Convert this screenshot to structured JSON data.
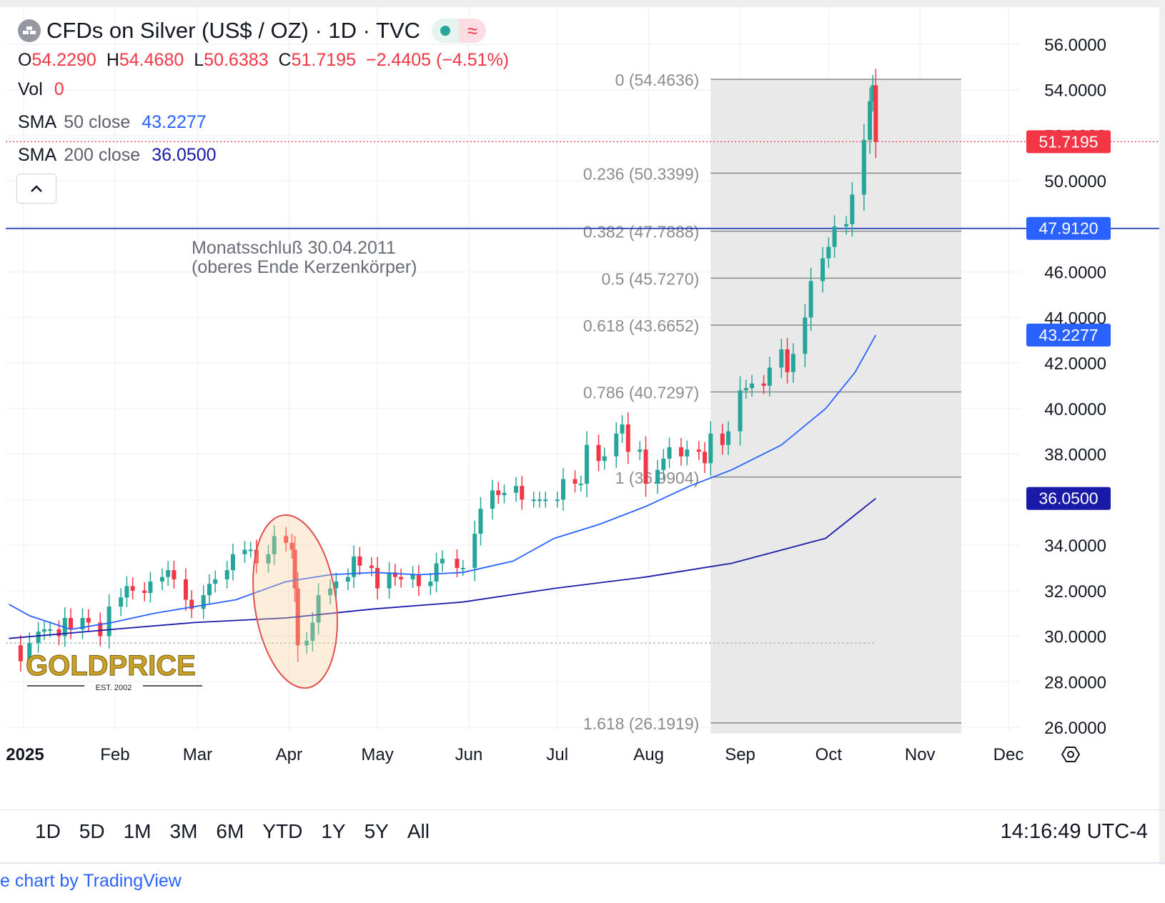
{
  "header": {
    "title": "CFDs on Silver (US$ / OZ) · 1D · TVC",
    "status_wave": "≈",
    "ohlc": {
      "o_label": "O",
      "o": "54.2290",
      "h_label": "H",
      "h": "54.4680",
      "l_label": "L",
      "l": "50.6383",
      "c_label": "C",
      "c": "51.7195",
      "change": "−2.4405 (−4.51%)"
    },
    "vol": {
      "label": "Vol",
      "value": "0"
    },
    "sma50": {
      "name": "SMA",
      "param": "50 close",
      "value": "43.2277"
    },
    "sma200": {
      "name": "SMA",
      "param": "200 close",
      "value": "36.0500"
    }
  },
  "colors": {
    "up": "#26a69a",
    "down": "#f23645",
    "sma50": "#2962ff",
    "sma200": "#1a1aa8",
    "hline": "#1e3fb8",
    "fib_zone": "#e9e9e9",
    "fib_line": "#8a8a8a"
  },
  "annotation": {
    "line1": "Monatsschluß 30.04.2011",
    "line2": "(oberes Ende Kerzenkörper)"
  },
  "logo": {
    "text": "GOLDPRICE",
    "sub": "EST. 2002"
  },
  "range_buttons": [
    "1D",
    "5D",
    "1M",
    "3M",
    "6M",
    "YTD",
    "1Y",
    "5Y",
    "All"
  ],
  "clock": "14:16:49 UTC-4",
  "credit": "e chart by TradingView",
  "chart_data": {
    "type": "candlestick",
    "title": "CFDs on Silver (US$ / OZ) · 1D · TVC",
    "y_axis": {
      "ylim": [
        25.5,
        57.5
      ],
      "ticks": [
        "56.0000",
        "54.0000",
        "52.0000",
        "50.0000",
        "48.0000",
        "46.0000",
        "44.0000",
        "42.0000",
        "40.0000",
        "38.0000",
        "36.0000",
        "34.0000",
        "32.0000",
        "30.0000",
        "28.0000",
        "26.0000"
      ]
    },
    "x_axis": {
      "ticks": [
        "2025",
        "Feb",
        "Mar",
        "Apr",
        "May",
        "Jun",
        "Jul",
        "Aug",
        "Sep",
        "Oct",
        "Nov",
        "Dec"
      ]
    },
    "price_tags": [
      {
        "value": "51.7195",
        "color": "#f23645"
      },
      {
        "value": "47.9120",
        "color": "#2962ff"
      },
      {
        "value": "43.2277",
        "color": "#2962ff"
      },
      {
        "value": "36.0500",
        "color": "#1a1aa8"
      }
    ],
    "horizontal_line": {
      "value": 47.912
    },
    "current_price": 51.7195,
    "prev_close_ref": 29.7,
    "fibonacci": [
      {
        "level": "0",
        "price": 54.4636,
        "label": "0 (54.4636)"
      },
      {
        "level": "0.236",
        "price": 50.3399,
        "label": "0.236 (50.3399)"
      },
      {
        "level": "0.382",
        "price": 47.7888,
        "label": "0.382 (47.7888)"
      },
      {
        "level": "0.5",
        "price": 45.727,
        "label": "0.5 (45.7270)"
      },
      {
        "level": "0.618",
        "price": 43.6652,
        "label": "0.618 (43.6652)"
      },
      {
        "level": "0.786",
        "price": 40.7297,
        "label": "0.786 (40.7297)"
      },
      {
        "level": "1",
        "price": 36.9904,
        "label": "1 (36.9904)"
      },
      {
        "level": "1.618",
        "price": 26.1919,
        "label": "1.618 (26.1919)"
      }
    ],
    "close_series": [
      [
        "2024-12-27",
        29.6
      ],
      [
        "2024-12-31",
        28.9
      ],
      [
        "2025-01-03",
        29.7
      ],
      [
        "2025-01-06",
        30.2
      ],
      [
        "2025-01-08",
        30.3
      ],
      [
        "2025-01-10",
        30.3
      ],
      [
        "2025-01-13",
        30.0
      ],
      [
        "2025-01-15",
        30.8
      ],
      [
        "2025-01-17",
        30.3
      ],
      [
        "2025-01-21",
        30.8
      ],
      [
        "2025-01-23",
        30.6
      ],
      [
        "2025-01-27",
        30.0
      ],
      [
        "2025-01-30",
        31.3
      ],
      [
        "2025-02-03",
        31.7
      ],
      [
        "2025-02-05",
        32.2
      ],
      [
        "2025-02-07",
        32.0
      ],
      [
        "2025-02-11",
        31.9
      ],
      [
        "2025-02-13",
        32.4
      ],
      [
        "2025-02-17",
        32.6
      ],
      [
        "2025-02-19",
        32.9
      ],
      [
        "2025-02-21",
        32.5
      ],
      [
        "2025-02-25",
        31.6
      ],
      [
        "2025-02-27",
        31.2
      ],
      [
        "2025-03-03",
        31.8
      ],
      [
        "2025-03-05",
        32.3
      ],
      [
        "2025-03-07",
        32.5
      ],
      [
        "2025-03-11",
        32.9
      ],
      [
        "2025-03-13",
        33.6
      ],
      [
        "2025-03-17",
        33.8
      ],
      [
        "2025-03-19",
        33.8
      ],
      [
        "2025-03-21",
        33.2
      ],
      [
        "2025-03-25",
        33.6
      ],
      [
        "2025-03-27",
        34.4
      ],
      [
        "2025-03-31",
        34.1
      ],
      [
        "2025-04-02",
        33.8
      ],
      [
        "2025-04-03",
        32.1
      ],
      [
        "2025-04-04",
        29.6
      ],
      [
        "2025-04-07",
        29.8
      ],
      [
        "2025-04-09",
        30.6
      ],
      [
        "2025-04-11",
        31.8
      ],
      [
        "2025-04-15",
        32.1
      ],
      [
        "2025-04-17",
        32.4
      ],
      [
        "2025-04-21",
        32.6
      ],
      [
        "2025-04-23",
        33.5
      ],
      [
        "2025-04-25",
        33.1
      ],
      [
        "2025-04-29",
        33.0
      ],
      [
        "2025-05-01",
        32.1
      ],
      [
        "2025-05-05",
        32.8
      ],
      [
        "2025-05-07",
        32.6
      ],
      [
        "2025-05-09",
        32.5
      ],
      [
        "2025-05-13",
        32.7
      ],
      [
        "2025-05-15",
        32.2
      ],
      [
        "2025-05-19",
        32.4
      ],
      [
        "2025-05-21",
        33.2
      ],
      [
        "2025-05-23",
        33.4
      ],
      [
        "2025-05-28",
        33.0
      ],
      [
        "2025-05-30",
        33.0
      ],
      [
        "2025-06-03",
        34.5
      ],
      [
        "2025-06-05",
        35.6
      ],
      [
        "2025-06-09",
        36.4
      ],
      [
        "2025-06-11",
        36.2
      ],
      [
        "2025-06-13",
        36.3
      ],
      [
        "2025-06-17",
        36.6
      ],
      [
        "2025-06-19",
        36.0
      ],
      [
        "2025-06-23",
        36.0
      ],
      [
        "2025-06-25",
        36.0
      ],
      [
        "2025-06-27",
        36.0
      ],
      [
        "2025-07-01",
        36.0
      ],
      [
        "2025-07-03",
        36.9
      ],
      [
        "2025-07-07",
        36.7
      ],
      [
        "2025-07-09",
        36.7
      ],
      [
        "2025-07-11",
        38.4
      ],
      [
        "2025-07-15",
        37.7
      ],
      [
        "2025-07-17",
        37.9
      ],
      [
        "2025-07-21",
        38.9
      ],
      [
        "2025-07-23",
        39.3
      ],
      [
        "2025-07-25",
        38.1
      ],
      [
        "2025-07-29",
        38.2
      ],
      [
        "2025-07-31",
        36.7
      ],
      [
        "2025-08-04",
        37.3
      ],
      [
        "2025-08-06",
        37.8
      ],
      [
        "2025-08-08",
        38.3
      ],
      [
        "2025-08-12",
        37.9
      ],
      [
        "2025-08-14",
        38.2
      ],
      [
        "2025-08-18",
        38.1
      ],
      [
        "2025-08-20",
        37.6
      ],
      [
        "2025-08-22",
        38.9
      ],
      [
        "2025-08-26",
        38.4
      ],
      [
        "2025-08-28",
        39.0
      ],
      [
        "2025-09-01",
        40.8
      ],
      [
        "2025-09-03",
        40.9
      ],
      [
        "2025-09-05",
        41.1
      ],
      [
        "2025-09-09",
        41.0
      ],
      [
        "2025-09-11",
        41.8
      ],
      [
        "2025-09-15",
        42.6
      ],
      [
        "2025-09-17",
        41.6
      ],
      [
        "2025-09-19",
        42.4
      ],
      [
        "2025-09-23",
        44.0
      ],
      [
        "2025-09-25",
        45.6
      ],
      [
        "2025-09-29",
        46.6
      ],
      [
        "2025-10-01",
        47.1
      ],
      [
        "2025-10-03",
        48.0
      ],
      [
        "2025-10-07",
        48.1
      ],
      [
        "2025-10-09",
        49.4
      ],
      [
        "2025-10-13",
        51.8
      ],
      [
        "2025-10-15",
        53.5
      ],
      [
        "2025-10-16",
        54.2
      ],
      [
        "2025-10-17",
        51.7195
      ]
    ],
    "sma50_series": [
      [
        "2024-12-27",
        31.4
      ],
      [
        "2025-01-03",
        30.9
      ],
      [
        "2025-01-17",
        30.3
      ],
      [
        "2025-01-31",
        30.6
      ],
      [
        "2025-02-14",
        31.0
      ],
      [
        "2025-02-28",
        31.3
      ],
      [
        "2025-03-14",
        31.6
      ],
      [
        "2025-03-31",
        32.4
      ],
      [
        "2025-04-15",
        32.7
      ],
      [
        "2025-04-30",
        32.8
      ],
      [
        "2025-05-15",
        32.7
      ],
      [
        "2025-05-30",
        32.8
      ],
      [
        "2025-06-16",
        33.3
      ],
      [
        "2025-06-30",
        34.3
      ],
      [
        "2025-07-15",
        34.9
      ],
      [
        "2025-07-31",
        35.7
      ],
      [
        "2025-08-15",
        36.6
      ],
      [
        "2025-08-29",
        37.3
      ],
      [
        "2025-09-15",
        38.4
      ],
      [
        "2025-09-30",
        40.0
      ],
      [
        "2025-10-10",
        41.6
      ],
      [
        "2025-10-17",
        43.2277
      ]
    ],
    "sma200_series": [
      [
        "2024-12-27",
        29.9
      ],
      [
        "2025-01-31",
        30.3
      ],
      [
        "2025-02-28",
        30.6
      ],
      [
        "2025-03-31",
        30.8
      ],
      [
        "2025-04-30",
        31.2
      ],
      [
        "2025-05-30",
        31.5
      ],
      [
        "2025-06-30",
        32.1
      ],
      [
        "2025-07-31",
        32.6
      ],
      [
        "2025-08-29",
        33.2
      ],
      [
        "2025-09-30",
        34.3
      ],
      [
        "2025-10-17",
        36.05
      ]
    ]
  }
}
